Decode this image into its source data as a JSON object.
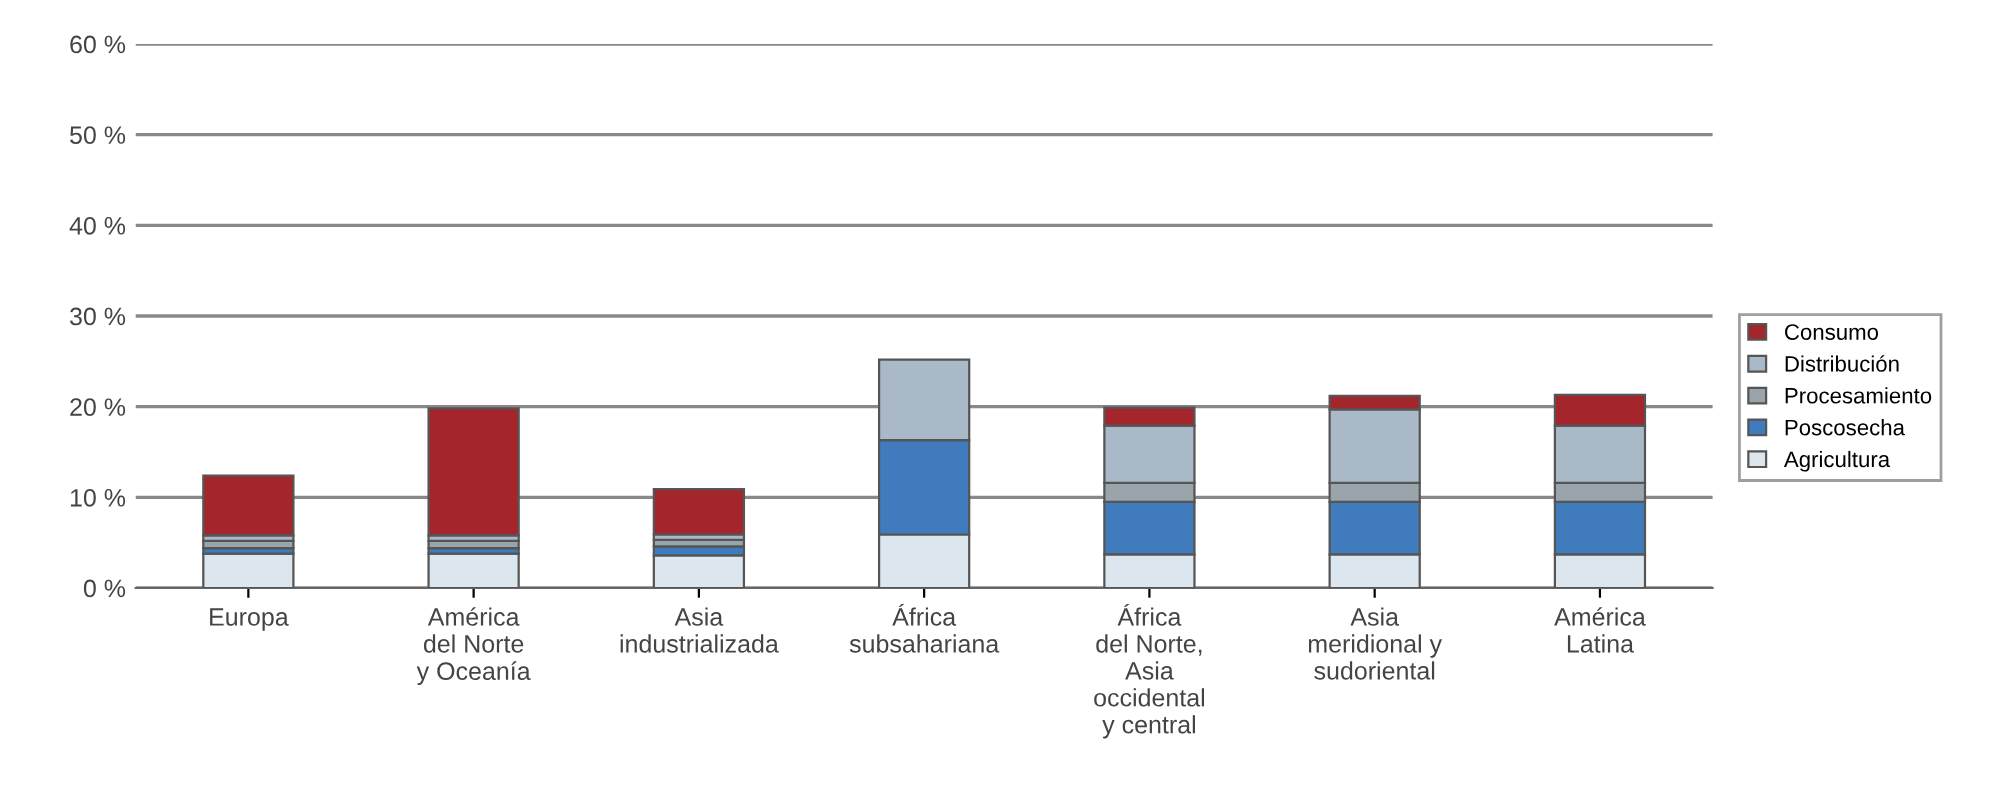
{
  "chart_data": {
    "type": "bar",
    "stacked": true,
    "categories": [
      "Europa",
      "América\ndel Norte\ny Oceanía",
      "Asia\nindustrializada",
      "África\nsubsahariana",
      "África\ndel Norte,\nAsia\noccidental\ny central",
      "Asia\nmeridional y\nsudoriental",
      "América\nLatina"
    ],
    "series": [
      {
        "name": "Agricultura",
        "color": "#dce6ee",
        "values": [
          3.8,
          3.8,
          3.6,
          5.9,
          3.7,
          3.7,
          3.7
        ]
      },
      {
        "name": "Poscosecha",
        "color": "#3f7bbd",
        "values": [
          0.6,
          0.6,
          1.0,
          10.4,
          5.8,
          5.8,
          5.8
        ]
      },
      {
        "name": "Procesamiento",
        "color": "#9aa5ab",
        "values": [
          0.8,
          0.8,
          0.7,
          null,
          2.1,
          2.1,
          2.1
        ]
      },
      {
        "name": "Distribución",
        "color": "#a9b9c8",
        "values": [
          0.6,
          0.6,
          0.6,
          8.9,
          6.3,
          8.1,
          6.3
        ]
      },
      {
        "name": "Consumo",
        "color": "#a5252c",
        "values": [
          6.6,
          14.0,
          5.0,
          null,
          2.0,
          1.5,
          3.4
        ]
      }
    ],
    "ylim": [
      0,
      60
    ],
    "yticks": [
      {
        "value": 0,
        "label": "0 %"
      },
      {
        "value": 10,
        "label": "10 %"
      },
      {
        "value": 20,
        "label": "20 %"
      },
      {
        "value": 30,
        "label": "30 %"
      },
      {
        "value": 40,
        "label": "40 %"
      },
      {
        "value": 50,
        "label": "50 %"
      },
      {
        "value": 60,
        "label": "60 %"
      }
    ],
    "grid": "y",
    "legend": "right"
  }
}
